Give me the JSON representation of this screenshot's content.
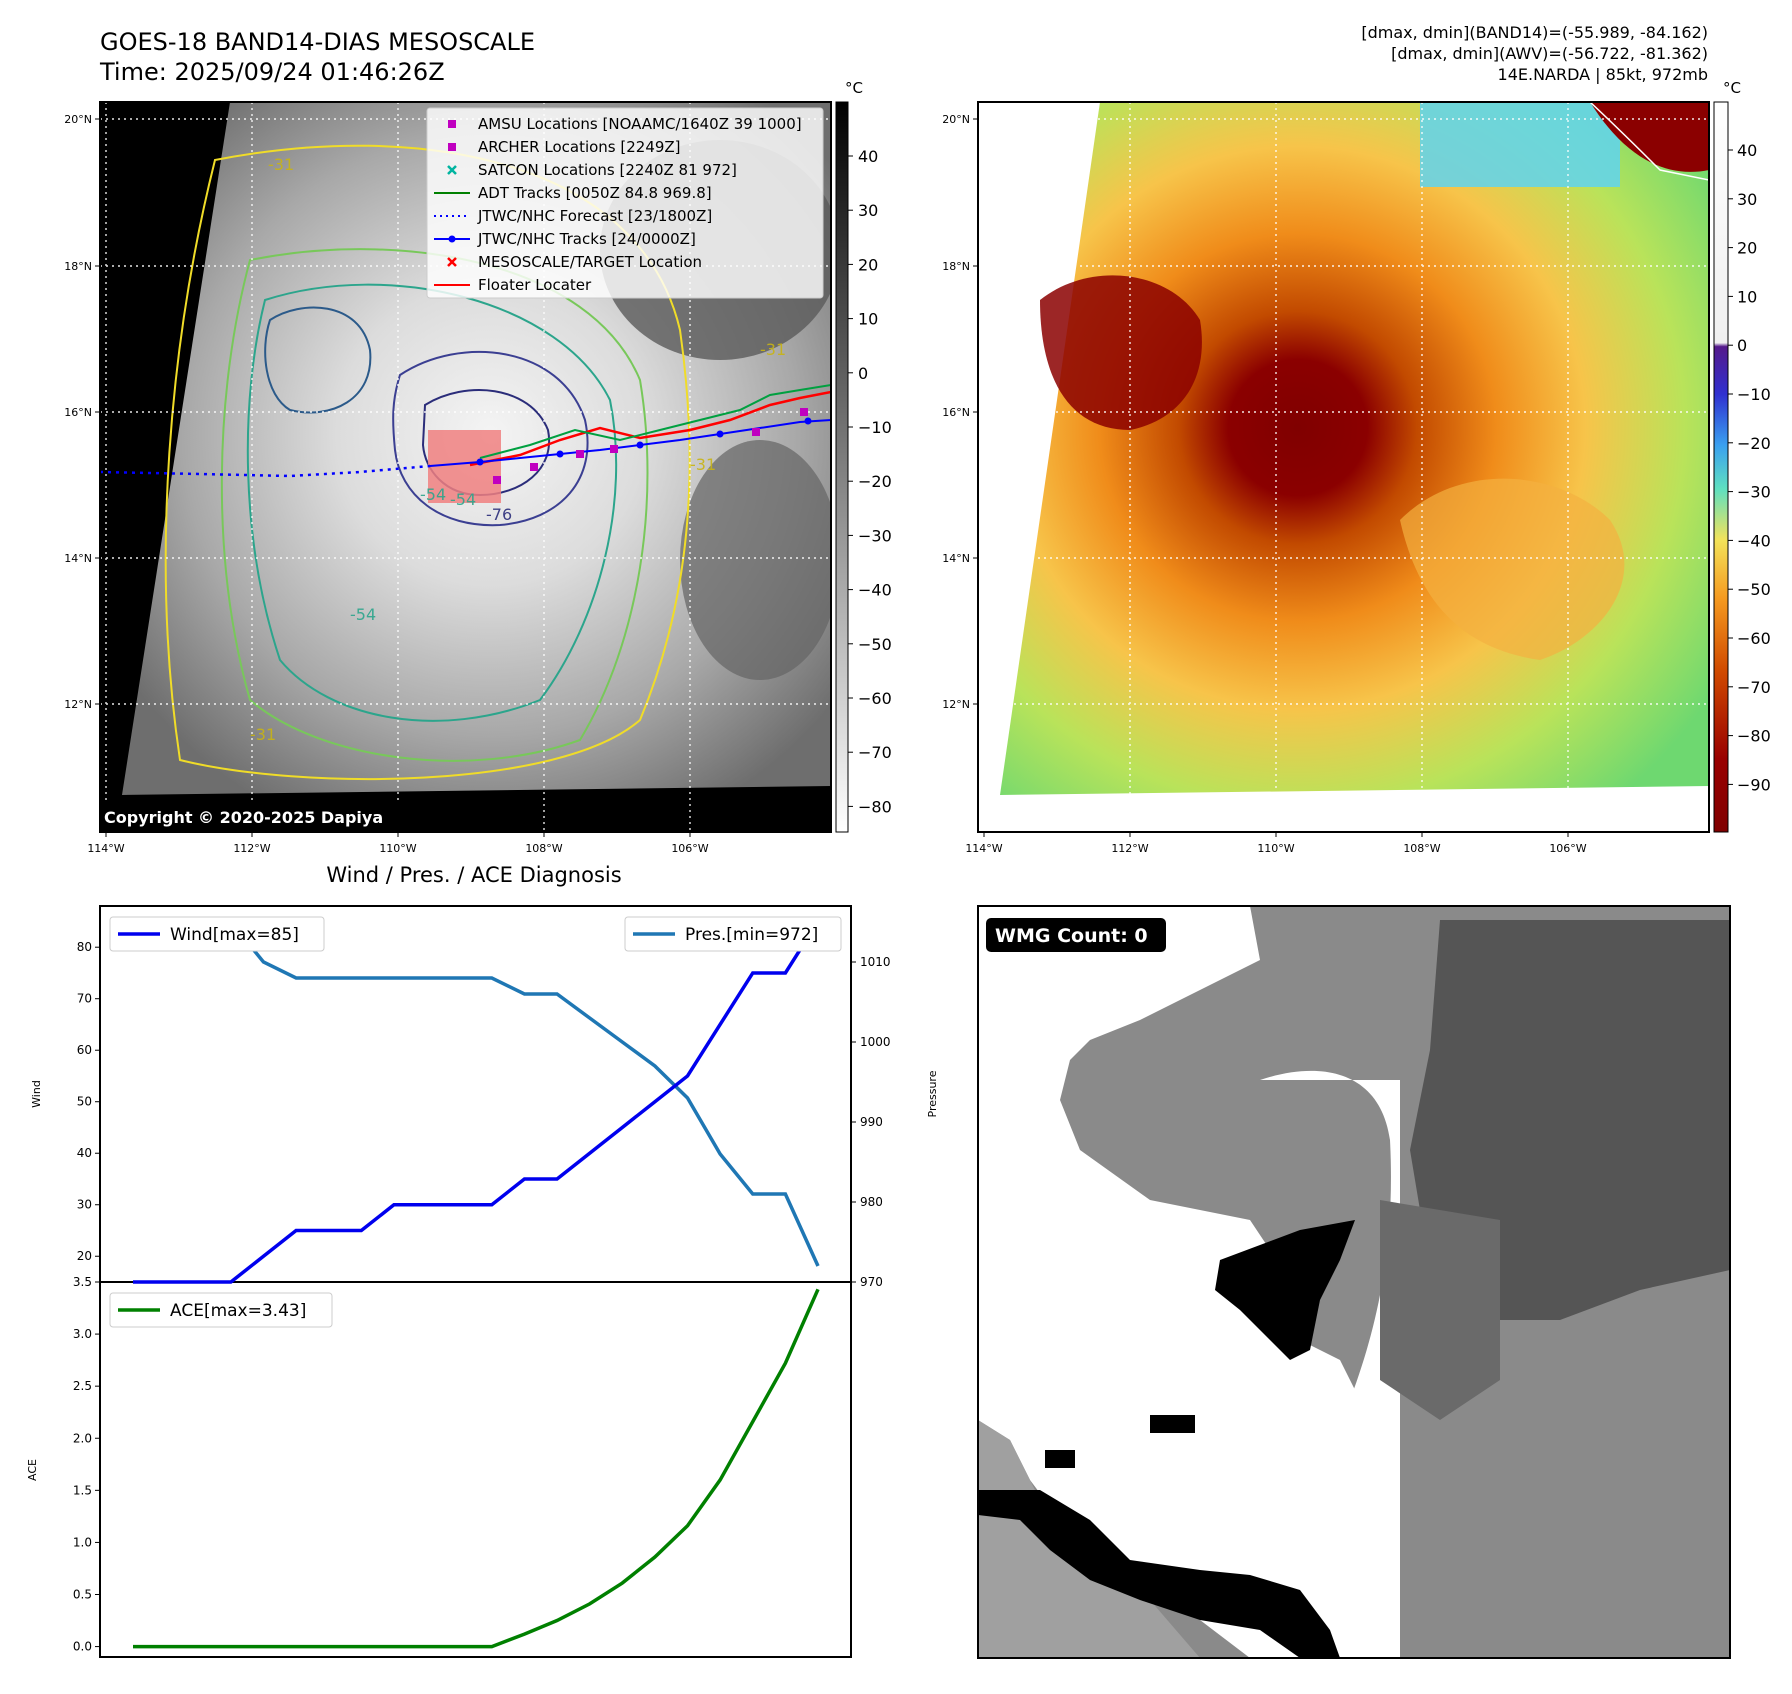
{
  "header": {
    "title_line1": "GOES-18 BAND14-DIAS MESOSCALE",
    "title_line2": "Time: 2025/09/24 01:46:26Z",
    "info_line1": "[dmax, dmin](BAND14)=(-55.989, -84.162)",
    "info_line2": "[dmax, dmin](AWV)=(-56.722, -81.362)",
    "info_line3": "14E.NARDA | 85kt, 972mb"
  },
  "map_left": {
    "copyright": "Copyright © 2020-2025 Dapiya",
    "lat_ticks": [
      "20°N",
      "18°N",
      "16°N",
      "14°N",
      "12°N"
    ],
    "lon_ticks": [
      "114°W",
      "112°W",
      "110°W",
      "108°W",
      "106°W"
    ],
    "contour_labels": [
      "-31",
      "-31",
      "-54",
      "-54",
      "-76",
      "-31",
      "-54",
      "-31"
    ],
    "colorbar": {
      "unit": "°C",
      "ticks": [
        "40",
        "30",
        "20",
        "10",
        "0",
        "−10",
        "−20",
        "−30",
        "−40",
        "−50",
        "−60",
        "−70",
        "−80"
      ]
    },
    "legend": [
      {
        "marker": "square",
        "color": "#c000c0",
        "label": "AMSU Locations [NOAAMC/1640Z 39 1000]"
      },
      {
        "marker": "square",
        "color": "#c000c0",
        "label": "ARCHER Locations [2249Z]"
      },
      {
        "marker": "x",
        "color": "#00b4a0",
        "label": "SATCON Locations [2240Z 81 972]"
      },
      {
        "marker": "line",
        "color": "#008000",
        "label": "ADT Tracks [0050Z 84.8 969.8]"
      },
      {
        "marker": "dotted",
        "color": "#0000ff",
        "label": "JTWC/NHC Forecast [23/1800Z]"
      },
      {
        "marker": "line-dot",
        "color": "#0000ff",
        "label": "JTWC/NHC Tracks [24/0000Z]"
      },
      {
        "marker": "x",
        "color": "#ff0000",
        "label": "MESOSCALE/TARGET Location"
      },
      {
        "marker": "line",
        "color": "#ff0000",
        "label": "Floater Locater"
      }
    ]
  },
  "map_right": {
    "lat_ticks": [
      "20°N",
      "18°N",
      "16°N",
      "14°N",
      "12°N"
    ],
    "lon_ticks": [
      "114°W",
      "112°W",
      "110°W",
      "108°W",
      "106°W"
    ],
    "colorbar": {
      "unit": "°C",
      "ticks": [
        "40",
        "30",
        "20",
        "10",
        "0",
        "−10",
        "−20",
        "−30",
        "−40",
        "−50",
        "−60",
        "−70",
        "−80",
        "−90"
      ]
    }
  },
  "wmg": {
    "label": "WMG Count: 0"
  },
  "chart_data": [
    {
      "type": "line",
      "title": "Wind / Pres. / ACE Diagnosis",
      "ylabel": "Wind",
      "y2label": "Pressure",
      "ylim": [
        15,
        88
      ],
      "y2lim": [
        970,
        1017
      ],
      "yticks": [
        20,
        30,
        40,
        50,
        60,
        70,
        80
      ],
      "y2ticks": [
        970,
        980,
        990,
        1000,
        1010
      ],
      "grid": false,
      "series": [
        {
          "name": "Wind[max=85]",
          "axis": "left",
          "color": "#0000ee",
          "values": [
            15,
            15,
            15,
            15,
            20,
            25,
            25,
            25,
            30,
            30,
            30,
            30,
            35,
            35,
            40,
            45,
            50,
            55,
            65,
            75,
            75,
            85
          ]
        },
        {
          "name": "Pres.[min=972]",
          "axis": "right",
          "color": "#1f77b4",
          "values": [
            1015,
            1015,
            1015,
            1015,
            1010,
            1008,
            1008,
            1008,
            1008,
            1008,
            1008,
            1008,
            1006,
            1006,
            1003,
            1000,
            997,
            993,
            986,
            981,
            981,
            972
          ]
        }
      ],
      "legend_left": "Wind[max=85]",
      "legend_right": "Pres.[min=972]"
    },
    {
      "type": "line",
      "ylabel": "ACE",
      "ylim": [
        -0.1,
        3.5
      ],
      "yticks": [
        "0.0",
        "0.5",
        "1.0",
        "1.5",
        "2.0",
        "2.5",
        "3.0",
        "3.5"
      ],
      "grid": false,
      "series": [
        {
          "name": "ACE[max=3.43]",
          "color": "#008000",
          "values": [
            0,
            0,
            0,
            0,
            0,
            0,
            0,
            0,
            0,
            0,
            0,
            0,
            0.12,
            0.25,
            0.41,
            0.61,
            0.86,
            1.16,
            1.6,
            2.16,
            2.72,
            3.43
          ]
        }
      ],
      "legend": "ACE[max=3.43]"
    }
  ]
}
